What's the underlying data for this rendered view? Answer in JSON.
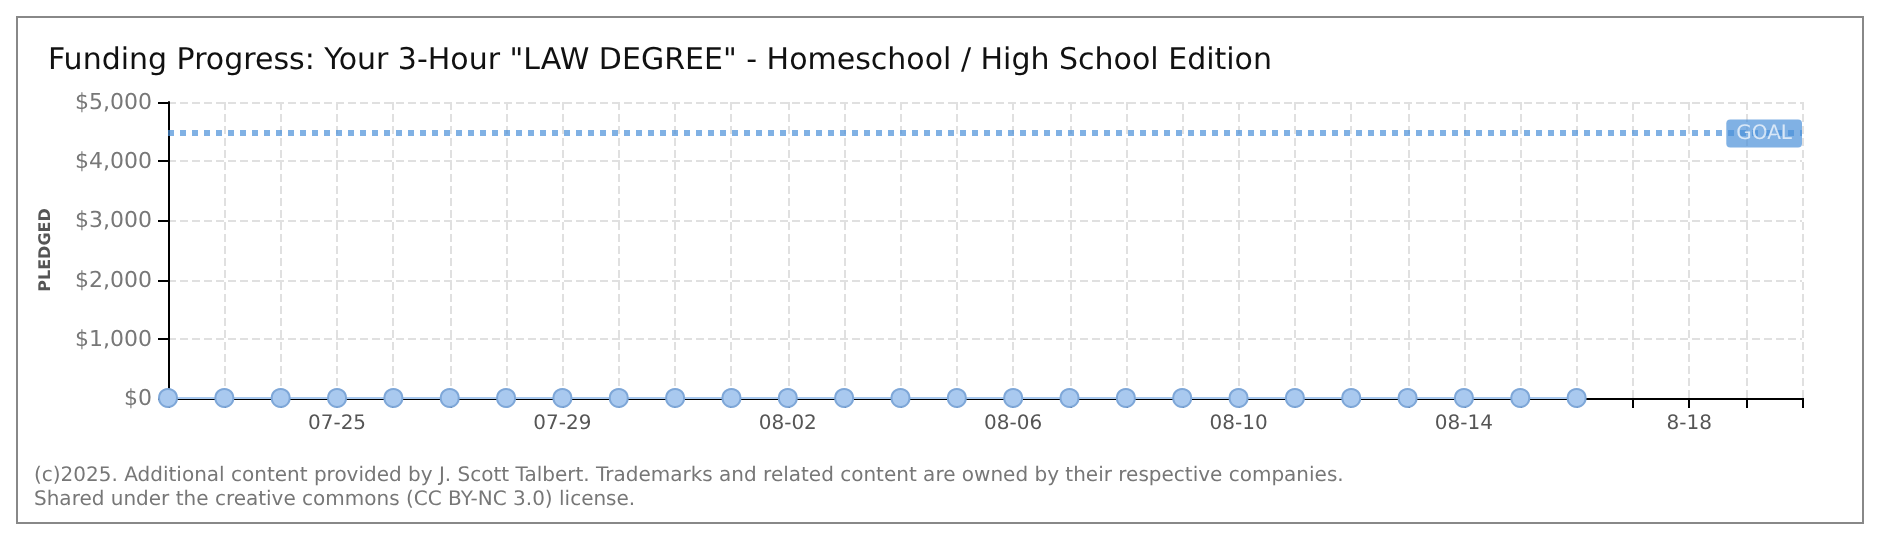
{
  "chart_data": {
    "type": "line",
    "title": "Funding Progress: Your 3-Hour \"LAW DEGREE\" - Homeschool / High School Edition",
    "ylabel": "PLEDGED",
    "x": [
      "--07-22",
      "--07-23",
      "--07-24",
      "--07-25",
      "--07-26",
      "--07-27",
      "--07-28",
      "--07-29",
      "--07-30",
      "--07-31",
      "--08-01",
      "--08-02",
      "--08-03",
      "--08-04",
      "--08-05",
      "--08-06",
      "--08-07",
      "--08-08",
      "--08-09",
      "--08-10",
      "--08-11",
      "--08-12",
      "--08-13",
      "--08-14",
      "--08-15",
      "--08-16"
    ],
    "values": [
      0,
      0,
      0,
      0,
      0,
      0,
      0,
      0,
      0,
      0,
      0,
      0,
      0,
      0,
      0,
      0,
      0,
      0,
      0,
      0,
      0,
      0,
      0,
      0,
      0,
      0
    ],
    "color": "#a9c9ef",
    "marker": "circle",
    "line_style": "solid",
    "xlim": [
      "--07-22",
      "--08-20"
    ],
    "xticks": [
      {
        "value": "--07-22",
        "label": null
      },
      {
        "value": "--07-23",
        "label": null
      },
      {
        "value": "--07-24",
        "label": null
      },
      {
        "value": "--07-25",
        "label": "07-25"
      },
      {
        "value": "--07-26",
        "label": null
      },
      {
        "value": "--07-27",
        "label": null
      },
      {
        "value": "--07-28",
        "label": null
      },
      {
        "value": "--07-29",
        "label": "07-29"
      },
      {
        "value": "--07-30",
        "label": null
      },
      {
        "value": "--07-31",
        "label": null
      },
      {
        "value": "--08-01",
        "label": null
      },
      {
        "value": "--08-02",
        "label": "08-02"
      },
      {
        "value": "--08-03",
        "label": null
      },
      {
        "value": "--08-04",
        "label": null
      },
      {
        "value": "--08-05",
        "label": null
      },
      {
        "value": "--08-06",
        "label": "08-06"
      },
      {
        "value": "--08-07",
        "label": null
      },
      {
        "value": "--08-08",
        "label": null
      },
      {
        "value": "--08-09",
        "label": null
      },
      {
        "value": "--08-10",
        "label": "08-10"
      },
      {
        "value": "--08-11",
        "label": null
      },
      {
        "value": "--08-12",
        "label": null
      },
      {
        "value": "--08-13",
        "label": null
      },
      {
        "value": "--08-14",
        "label": "08-14"
      },
      {
        "value": "--08-15",
        "label": null
      },
      {
        "value": "--08-16",
        "label": null
      },
      {
        "value": "--08-17",
        "label": null
      },
      {
        "value": "--08-18",
        "label": "8-18"
      },
      {
        "value": "--08-19",
        "label": null
      },
      {
        "value": "--08-20",
        "label": null
      }
    ],
    "ylim": [
      0,
      5000
    ],
    "yticks": [
      {
        "value": 0,
        "label": "$0"
      },
      {
        "value": 1000,
        "label": "$1,000"
      },
      {
        "value": 2000,
        "label": "$2,000"
      },
      {
        "value": 3000,
        "label": "$3,000"
      },
      {
        "value": 4000,
        "label": "$4,000"
      },
      {
        "value": 5000,
        "label": "$5,000"
      }
    ],
    "grid": true,
    "ref_lines": [
      {
        "axis": "y",
        "value": 4500,
        "label": "GOAL",
        "color": "#4a90d9",
        "line_style": "dotted"
      }
    ],
    "annotations": [
      "(c)2025. Additional content provided by J. Scott Talbert. Trademarks and related content are owned by their respective companies.",
      "Shared under the creative commons (CC BY-NC 3.0) license."
    ]
  }
}
